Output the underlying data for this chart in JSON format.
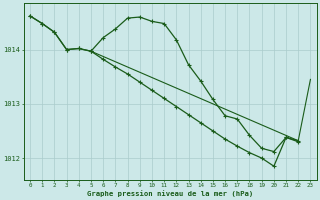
{
  "title": "Graphe pression niveau de la mer (hPa)",
  "bg_color": "#cce8e8",
  "grid_color": "#aacccc",
  "line_color": "#1a5c1a",
  "xlim": [
    -0.5,
    23.5
  ],
  "ylim": [
    1011.6,
    1014.85
  ],
  "yticks": [
    1012,
    1013,
    1014
  ],
  "xticks": [
    0,
    1,
    2,
    3,
    4,
    5,
    6,
    7,
    8,
    9,
    10,
    11,
    12,
    13,
    14,
    15,
    16,
    17,
    18,
    19,
    20,
    21,
    22,
    23
  ],
  "series": [
    {
      "x": [
        0,
        1,
        2,
        3,
        4,
        5,
        6,
        7,
        8,
        9,
        10,
        11,
        12,
        13,
        14,
        15,
        16,
        17,
        18,
        19,
        20,
        21,
        22
      ],
      "y": [
        1014.62,
        1014.48,
        1014.32,
        1014.0,
        1014.02,
        1013.97,
        1014.22,
        1014.38,
        1014.58,
        1014.6,
        1014.52,
        1014.48,
        1014.18,
        1013.72,
        1013.42,
        1013.08,
        1012.78,
        1012.72,
        1012.42,
        1012.18,
        1012.12,
        1012.38,
        1012.32
      ],
      "marker": true,
      "linewidth": 0.9
    },
    {
      "x": [
        0,
        1,
        2,
        3,
        4,
        5
      ],
      "y": [
        1014.62,
        1014.48,
        1014.32,
        1014.0,
        1014.02,
        1013.97
      ],
      "marker": true,
      "linewidth": 0.9
    },
    {
      "x": [
        5,
        6,
        7,
        8,
        9,
        10,
        11,
        12,
        13,
        14,
        15,
        16,
        17,
        18,
        19,
        20,
        21,
        22
      ],
      "y": [
        1013.97,
        1013.82,
        1013.68,
        1013.55,
        1013.4,
        1013.25,
        1013.1,
        1012.95,
        1012.8,
        1012.65,
        1012.5,
        1012.35,
        1012.22,
        1012.1,
        1012.0,
        1011.85,
        1012.38,
        1012.3
      ],
      "marker": true,
      "linewidth": 0.9
    },
    {
      "x": [
        5,
        22,
        23
      ],
      "y": [
        1013.97,
        1012.32,
        1013.45
      ],
      "marker": false,
      "linewidth": 0.8
    }
  ],
  "figsize": [
    3.2,
    2.0
  ],
  "dpi": 100
}
